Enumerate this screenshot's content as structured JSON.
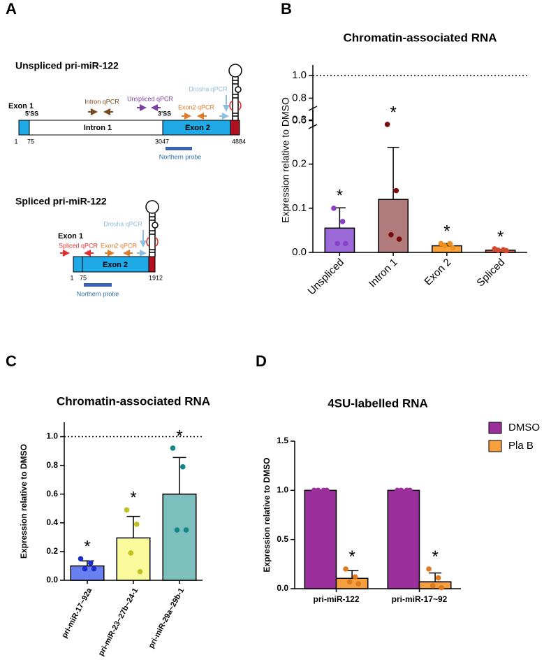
{
  "panel_labels": [
    "A",
    "B",
    "C",
    "D"
  ],
  "diagram": {
    "unspliced": {
      "title": "Unspliced pri-miR-122",
      "exon1": "Exon 1",
      "ss5": "5'SS",
      "ss3": "3'SS",
      "intron": "Intron 1",
      "exon2": "Exon 2",
      "intron_qpcr": "Intron qPCR",
      "unspliced_qpcr": "Unspliced qPCR",
      "exon2_qpcr": "Exon2 qPCR",
      "drosha_qpcr": "Drosha qPCR",
      "positions": [
        "1",
        "75",
        "3047",
        "4884"
      ],
      "probe": "Northern probe"
    },
    "spliced": {
      "title": "Spliced pri-miR-122",
      "exon1": "Exon 1",
      "exon2": "Exon 2",
      "spliced_qpcr": "Spliced qPCR",
      "exon2_qpcr": "Exon2 qPCR",
      "drosha_qpcr": "Drosha qPCR",
      "positions": [
        "1",
        "75",
        "1912"
      ],
      "probe": "Northern probe"
    }
  },
  "chart_data": [
    {
      "type": "bar",
      "title": "Chromatin-associated RNA",
      "y_label": "Expression relative to DMSO",
      "categories": [
        "Unspliced",
        "Intron 1",
        "Exon 2",
        "Spliced"
      ],
      "values": [
        0.055,
        0.12,
        0.015,
        0.005
      ],
      "errors": [
        0.046,
        0.118,
        0.005,
        0.002
      ],
      "points": [
        [
          0.1,
          0.07,
          0.02,
          0.02
        ],
        [
          0.29,
          0.14,
          0.04,
          0.03
        ],
        [
          0.02,
          0.02,
          0.015,
          0.01
        ],
        [
          0.008,
          0.006,
          0.005,
          0.004
        ]
      ],
      "annotations": [
        "*",
        "*",
        "*",
        "*"
      ],
      "colors": [
        "#9c6ad8",
        "#b27c7c",
        "#f5a33a",
        "#dc6a50"
      ],
      "point_colors": [
        "#8a3fc8",
        "#7a0a0a",
        "#f0901a",
        "#d04a30"
      ],
      "ylim": [
        0,
        1.07
      ],
      "axis_break": [
        0.32,
        0.56
      ],
      "yticks": [
        {
          "value": 0,
          "label": "0.0"
        },
        0.1,
        0.2,
        0.3,
        0.6,
        0.8,
        {
          "value": 1,
          "label": "1.0"
        }
      ],
      "reference_line": 1.0
    },
    {
      "type": "bar",
      "title": "Chromatin-associated RNA",
      "y_label": "Expression relative to DMSO",
      "categories": [
        "pri-miR-17~92a",
        "pri-miR-23~27b~24-1",
        "pri-miR-29a~29b-1"
      ],
      "values": [
        0.1,
        0.295,
        0.6
      ],
      "errors": [
        0.035,
        0.15,
        0.255
      ],
      "points": [
        [
          0.15,
          0.12,
          0.08,
          0.08
        ],
        [
          0.49,
          0.39,
          0.19,
          0.06
        ],
        [
          0.92,
          0.79,
          0.35,
          0.35
        ]
      ],
      "annotations": [
        "*",
        "*",
        "*"
      ],
      "colors": [
        "#6b80f0",
        "#fafa9c",
        "#7cbfbd"
      ],
      "point_colors": [
        "#1a2bd0",
        "#c0c020",
        "#138585"
      ],
      "ylim": [
        0,
        1.1
      ],
      "yticks": [
        {
          "value": 0,
          "label": "0.0"
        },
        0.2,
        0.4,
        0.6,
        0.8,
        {
          "value": 1,
          "label": "1.0"
        }
      ],
      "reference_line": 1.0
    },
    {
      "type": "grouped-bar",
      "title": "4SU-labelled RNA",
      "y_label": "Expression relative to DMSO",
      "categories": [
        "pri-miR-122",
        "pri-miR-17~92"
      ],
      "series": [
        {
          "name": "DMSO",
          "color": "#9b2f9b",
          "point_color": "#9b2f9b",
          "values": [
            1.0,
            1.0
          ],
          "points": [
            [
              1.0,
              1.0,
              1.0,
              1.0
            ],
            [
              1.0,
              1.0,
              1.0,
              1.0
            ]
          ]
        },
        {
          "name": "Pla B",
          "color": "#f7a040",
          "point_color": "#e07820",
          "values": [
            0.105,
            0.07
          ],
          "errors": [
            0.08,
            0.09
          ],
          "points": [
            [
              0.2,
              0.12,
              0.07,
              0.05
            ],
            [
              0.2,
              0.11,
              0.03,
              0.01
            ]
          ],
          "annotations": [
            "*",
            "*"
          ]
        }
      ],
      "ylim": [
        0,
        1.5
      ],
      "yticks": [
        {
          "value": 0,
          "label": "0.0"
        },
        0.5,
        {
          "value": 1,
          "label": "1.0"
        },
        1.5
      ],
      "legend": "upper right"
    }
  ]
}
